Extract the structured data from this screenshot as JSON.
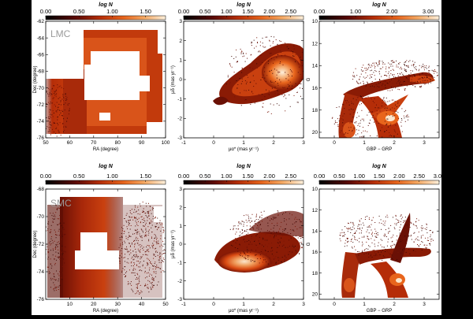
{
  "chart_data": [
    {
      "type": "heatmap",
      "region_label": "LMC",
      "colorbar": {
        "title": "log N",
        "ticks": [
          "0.00",
          "0.50",
          "1.00",
          "1.50"
        ],
        "range": [
          0,
          1.8
        ]
      },
      "xlabel": "RA (degree)",
      "ylabel": "Dec (degree)",
      "xlim": [
        50,
        100
      ],
      "ylim": [
        -76,
        -62
      ],
      "xticks": [
        "50",
        "60",
        "70",
        "80",
        "90",
        "100"
      ],
      "yticks": [
        "-62",
        "-64",
        "-66",
        "-68",
        "-70",
        "-72",
        "-74",
        "-76"
      ]
    },
    {
      "type": "heatmap",
      "colorbar": {
        "title": "log N",
        "ticks": [
          "0.00",
          "0.50",
          "1.00",
          "1.50",
          "2.00",
          "2.50"
        ],
        "range": [
          0,
          2.8
        ]
      },
      "xlabel": "μα* (mas yr⁻¹)",
      "ylabel": "μδ (mas yr⁻¹)",
      "xlim": [
        -1,
        3
      ],
      "ylim": [
        -3,
        3
      ],
      "xticks": [
        "-1",
        "0",
        "1",
        "2",
        "3"
      ],
      "yticks": [
        "3",
        "2",
        "1",
        "0",
        "-1",
        "-2",
        "-3"
      ]
    },
    {
      "type": "heatmap",
      "colorbar": {
        "title": "log N",
        "ticks": [
          "0.00",
          "1.00",
          "2.00",
          "3.00"
        ],
        "range": [
          0,
          3.3
        ]
      },
      "xlabel": "GBP − GRP",
      "ylabel": "G",
      "xlim": [
        -0.5,
        3.5
      ],
      "ylim": [
        20.5,
        10
      ],
      "xticks": [
        "0",
        "1",
        "2",
        "3"
      ],
      "yticks": [
        "10",
        "12",
        "14",
        "16",
        "18",
        "20"
      ]
    },
    {
      "type": "heatmap",
      "region_label": "SMC",
      "colorbar": {
        "title": "log N",
        "ticks": [
          "0.00",
          "0.50",
          "1.00",
          "1.50"
        ],
        "range": [
          0,
          1.8
        ]
      },
      "xlabel": "RA (degree)",
      "ylabel": "Dec (degree)",
      "xlim": [
        0,
        50
      ],
      "ylim": [
        -76,
        -68
      ],
      "xticks": [
        "10",
        "20",
        "30",
        "40",
        "50"
      ],
      "yticks": [
        "-68",
        "-70",
        "-72",
        "-74",
        "-76"
      ]
    },
    {
      "type": "heatmap",
      "colorbar": {
        "title": "log N",
        "ticks": [
          "0.00",
          "0.50",
          "1.00",
          "1.50",
          "2.00",
          "2.50"
        ],
        "range": [
          0,
          2.8
        ]
      },
      "xlabel": "μα* (mas yr⁻¹)",
      "ylabel": "μδ (mas yr⁻¹)",
      "xlim": [
        -1,
        3
      ],
      "ylim": [
        -3,
        3
      ],
      "xticks": [
        "-1",
        "0",
        "1",
        "2",
        "3"
      ],
      "yticks": [
        "3",
        "2",
        "1",
        "0",
        "-1",
        "-2",
        "-3"
      ]
    },
    {
      "type": "heatmap",
      "colorbar": {
        "title": "log N",
        "ticks": [
          "0.00",
          "0.50",
          "1.00",
          "1.50",
          "2.00",
          "2.50",
          "3.00"
        ],
        "range": [
          0,
          3.0
        ]
      },
      "xlabel": "GBP − GRP",
      "ylabel": "G",
      "xlim": [
        -0.5,
        3.5
      ],
      "ylim": [
        20.5,
        10
      ],
      "xticks": [
        "0",
        "1",
        "2",
        "3"
      ],
      "yticks": [
        "10",
        "12",
        "14",
        "16",
        "18",
        "20"
      ]
    }
  ]
}
